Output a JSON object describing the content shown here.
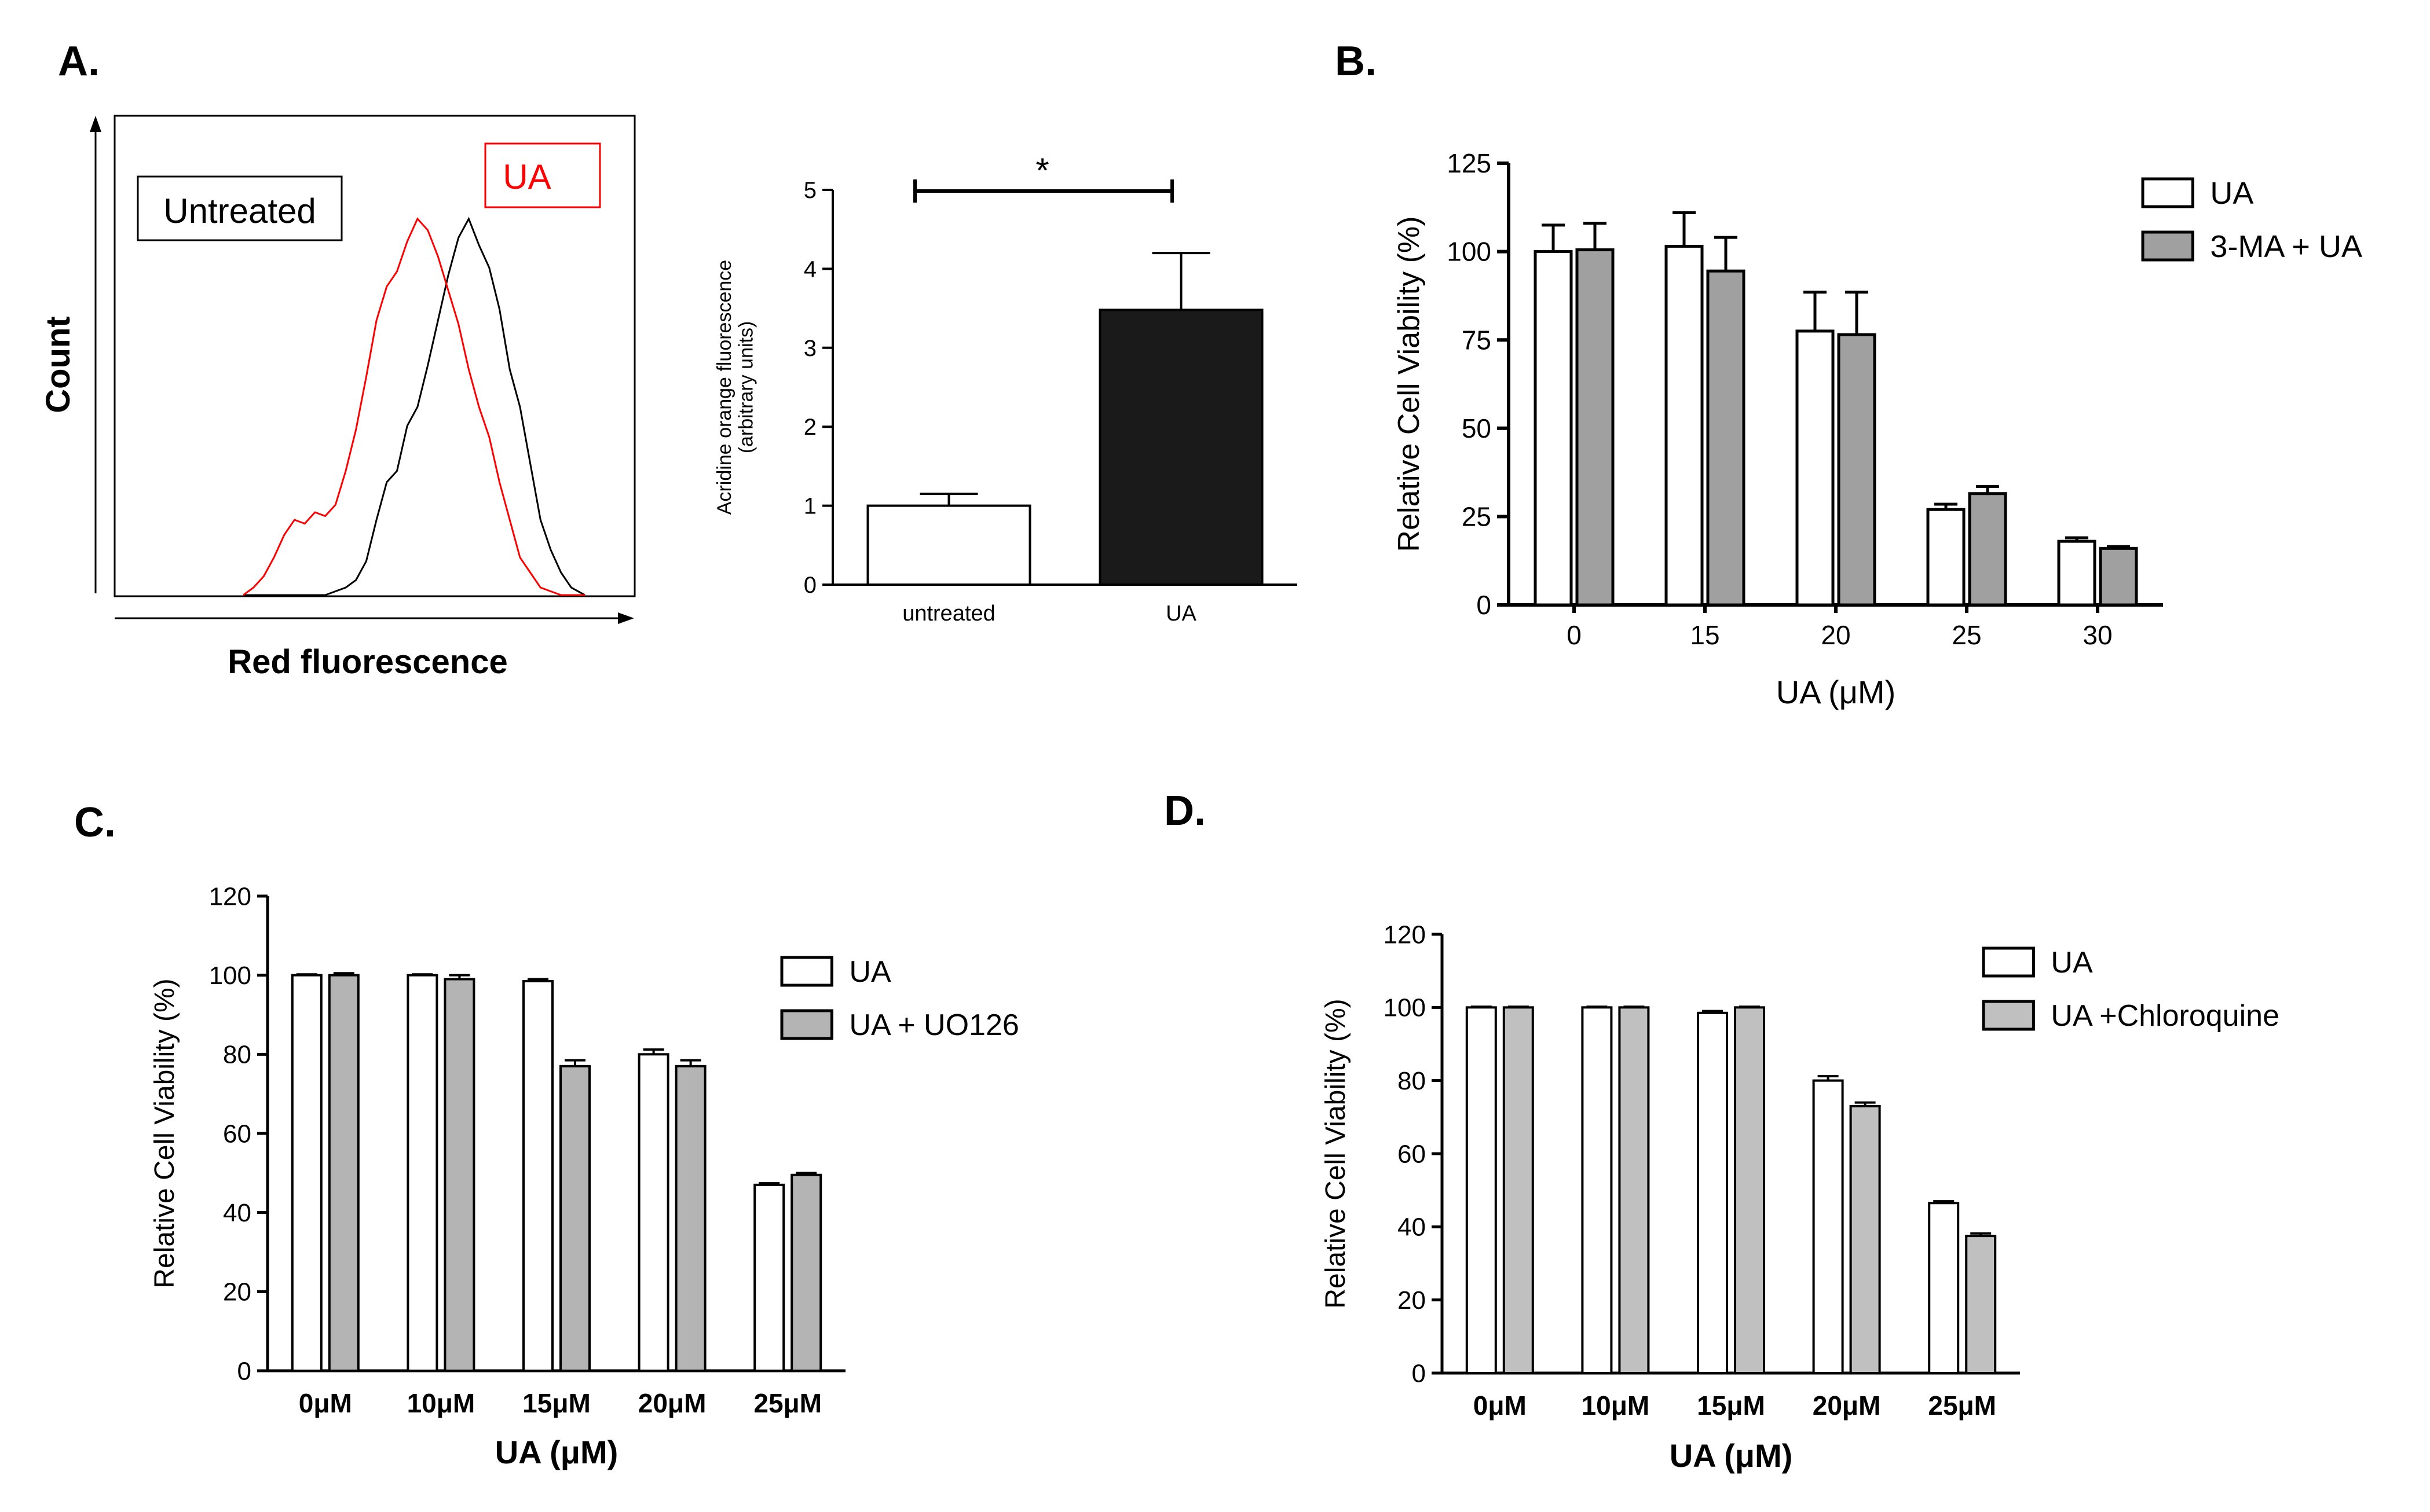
{
  "panel_labels": {
    "a": "A.",
    "b": "B.",
    "c": "C.",
    "d": "D."
  },
  "colors": {
    "axis": "#000000",
    "untreated_trace": "#000000",
    "ua_trace": "#ff0000",
    "bar_open": "#ffffff",
    "bar_grey_b": "#a0a0a0",
    "bar_grey_c": "#b4b4b4",
    "bar_grey_d": "#c0c0c0",
    "bar_black": "#1a1a1a"
  },
  "chart_data": [
    {
      "panel": "A-histogram",
      "type": "line",
      "xlabel": "Red fluorescence",
      "ylabel": "Count",
      "series": [
        {
          "name": "Untreated",
          "color": "#000000",
          "x": [
            0.0,
            0.03,
            0.06,
            0.09,
            0.12,
            0.15,
            0.18,
            0.21,
            0.24,
            0.27,
            0.3,
            0.33,
            0.36,
            0.39,
            0.42,
            0.45,
            0.48,
            0.51,
            0.54,
            0.57,
            0.6,
            0.63,
            0.66,
            0.69,
            0.72,
            0.75,
            0.78,
            0.81,
            0.84,
            0.87,
            0.9,
            0.93,
            0.96,
            1.0
          ],
          "y": [
            0,
            0,
            0,
            0,
            0,
            0,
            0,
            0,
            0,
            0.01,
            0.02,
            0.04,
            0.09,
            0.2,
            0.3,
            0.33,
            0.45,
            0.5,
            0.61,
            0.73,
            0.85,
            0.95,
            1.0,
            0.93,
            0.87,
            0.76,
            0.6,
            0.5,
            0.35,
            0.2,
            0.12,
            0.06,
            0.02,
            0
          ]
        },
        {
          "name": "UA",
          "color": "#ff0000",
          "x": [
            0.0,
            0.03,
            0.06,
            0.09,
            0.12,
            0.15,
            0.18,
            0.21,
            0.24,
            0.27,
            0.3,
            0.33,
            0.36,
            0.39,
            0.42,
            0.45,
            0.48,
            0.51,
            0.54,
            0.57,
            0.6,
            0.63,
            0.66,
            0.69,
            0.72,
            0.75,
            0.78,
            0.81,
            0.84,
            0.87,
            0.9,
            0.93,
            0.96,
            1.0
          ],
          "y": [
            0,
            0.02,
            0.05,
            0.1,
            0.16,
            0.2,
            0.19,
            0.22,
            0.21,
            0.24,
            0.33,
            0.44,
            0.58,
            0.73,
            0.82,
            0.86,
            0.94,
            1.0,
            0.97,
            0.9,
            0.81,
            0.72,
            0.6,
            0.5,
            0.42,
            0.3,
            0.2,
            0.1,
            0.06,
            0.02,
            0.01,
            0,
            0,
            0
          ]
        }
      ],
      "legend_labels": [
        "Untreated",
        "UA"
      ]
    },
    {
      "panel": "A-bar",
      "type": "bar",
      "ylabel": "Acridine orange fluorescence\n(arbitrary units)",
      "ylabel_lines": [
        "Acridine orange fluorescence",
        "(arbitrary units)"
      ],
      "categories": [
        "untreated",
        "UA"
      ],
      "values": [
        1.0,
        3.48
      ],
      "errors": [
        0.15,
        0.72
      ],
      "fills": [
        "#ffffff",
        "#1a1a1a"
      ],
      "ylim": [
        0,
        5
      ],
      "yticks": [
        0,
        1,
        2,
        3,
        4,
        5
      ],
      "significance": "*"
    },
    {
      "panel": "B",
      "type": "bar",
      "xlabel": "UA (μM)",
      "ylabel": "Relative Cell Viability (%)",
      "categories": [
        "0",
        "15",
        "20",
        "25",
        "30"
      ],
      "ylim": [
        0,
        125
      ],
      "yticks": [
        0,
        25,
        50,
        75,
        100,
        125
      ],
      "series": [
        {
          "name": "UA",
          "fill": "#ffffff",
          "values": [
            100,
            101.5,
            77.5,
            27,
            18
          ],
          "errors": [
            7.5,
            9.5,
            11,
            1.5,
            1
          ]
        },
        {
          "name": "3-MA + UA",
          "fill": "#a0a0a0",
          "values": [
            100.5,
            94.5,
            76.5,
            31.5,
            16
          ],
          "errors": [
            7.5,
            9.5,
            12,
            2,
            0.5
          ]
        }
      ]
    },
    {
      "panel": "C",
      "type": "bar",
      "xlabel": "UA (μM)",
      "ylabel": "Relative Cell  Viability (%)",
      "categories": [
        "0μM",
        "10μM",
        "15μM",
        "20μM",
        "25μM"
      ],
      "ylim": [
        0,
        120
      ],
      "yticks": [
        0,
        20,
        40,
        60,
        80,
        100,
        120
      ],
      "series": [
        {
          "name": "UA",
          "fill": "#ffffff",
          "values": [
            100,
            100,
            98.5,
            80,
            47
          ],
          "errors": [
            0.2,
            0.2,
            0.5,
            1.2,
            0.4
          ]
        },
        {
          "name": "UA + UO126",
          "fill": "#b4b4b4",
          "values": [
            100,
            99,
            77,
            77,
            49.5
          ],
          "errors": [
            0.5,
            1,
            1.5,
            1.5,
            0.5
          ]
        }
      ]
    },
    {
      "panel": "D",
      "type": "bar",
      "xlabel": "UA (μM)",
      "ylabel": "Relative Cell  Viability (%)",
      "categories": [
        "0μM",
        "10μM",
        "15μM",
        "20μM",
        "25μM"
      ],
      "ylim": [
        0,
        120
      ],
      "yticks": [
        0,
        20,
        40,
        60,
        80,
        100,
        120
      ],
      "series": [
        {
          "name": "UA",
          "fill": "#ffffff",
          "values": [
            100,
            100,
            98.5,
            80,
            46.5
          ],
          "errors": [
            0.2,
            0.2,
            0.5,
            1.2,
            0.5
          ]
        },
        {
          "name": "UA +Chloroquine",
          "fill": "#c0c0c0",
          "values": [
            100,
            100,
            100,
            73,
            37.5
          ],
          "errors": [
            0.2,
            0.2,
            0.2,
            1,
            0.7
          ]
        }
      ]
    }
  ]
}
